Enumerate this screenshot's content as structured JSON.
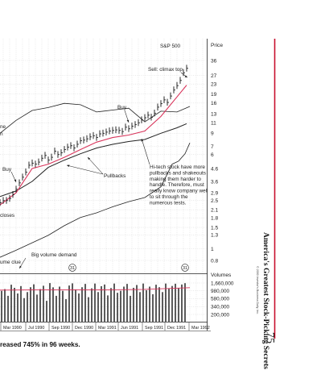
{
  "chart_data": {
    "type": "line",
    "title": "",
    "price_axis_title": "Price",
    "volume_axis_title": "Volumes",
    "reference_series_label": "S&P 500",
    "price_ticks": [
      36,
      27,
      23,
      19,
      16,
      13,
      11,
      9,
      7,
      6,
      4.6,
      3.6,
      2.9,
      2.5,
      2.1,
      1.8,
      1.5,
      1.3,
      1.0,
      0.8
    ],
    "price_scale": "log",
    "volume_ticks": [
      "1,660,000",
      "980,000",
      "580,000",
      "340,000",
      "200,000"
    ],
    "volume_tick_values": [
      1660000,
      980000,
      580000,
      340000,
      200000
    ],
    "x_labels": [
      "Mar 1990",
      "Jul 1990",
      "Sep 1990",
      "Dec 1990",
      "Mar 1991",
      "Jun 1991",
      "Sep 1991",
      "Dec 1991",
      "Mar 1992"
    ],
    "grid": true,
    "series": [
      {
        "kind": "price_bars",
        "x": [
          0,
          4,
          8,
          12,
          16,
          20,
          24,
          28,
          32,
          36,
          40,
          44,
          48,
          52,
          56,
          60,
          64,
          68,
          72,
          76,
          80,
          84,
          88,
          92,
          96,
          100,
          104,
          108,
          112,
          116,
          120,
          124,
          128,
          132,
          136,
          140,
          144,
          148,
          152,
          156,
          160,
          164,
          168,
          172,
          176,
          180,
          184,
          188,
          192,
          196,
          200,
          204,
          208,
          212,
          216,
          220,
          224,
          228,
          232
        ],
        "values": [
          2.4,
          2.5,
          2.5,
          2.6,
          2.8,
          3.1,
          3.5,
          3.9,
          4.3,
          4.9,
          5.1,
          5.0,
          5.2,
          5.6,
          5.9,
          5.4,
          5.7,
          6.4,
          6.0,
          6.2,
          6.6,
          6.9,
          7.1,
          6.8,
          7.3,
          7.8,
          7.9,
          8.1,
          8.4,
          8.6,
          8.3,
          8.9,
          9.0,
          9.2,
          9.4,
          9.5,
          9.6,
          9.5,
          9.3,
          10.1,
          9.8,
          10.3,
          10.6,
          11.0,
          11.6,
          12.1,
          12.7,
          12.2,
          13.2,
          14.8,
          15.8,
          17.0,
          16.2,
          18.3,
          20.5,
          22.3,
          24.6,
          28.5,
          31.0
        ]
      },
      {
        "kind": "moving_average_short",
        "x": [
          0,
          20,
          40,
          60,
          80,
          100,
          120,
          140,
          160,
          180,
          200,
          220,
          232
        ],
        "values": [
          2.3,
          2.9,
          4.6,
          5.0,
          5.7,
          6.6,
          7.6,
          8.3,
          8.7,
          9.4,
          12.4,
          18.0,
          22.5
        ]
      },
      {
        "kind": "moving_average_long",
        "x": [
          0,
          20,
          40,
          60,
          80,
          100,
          120,
          140,
          160,
          180,
          200,
          220,
          232
        ],
        "values": [
          2.7,
          3.0,
          3.6,
          4.7,
          5.4,
          6.1,
          6.8,
          7.3,
          7.7,
          8.0,
          9.0,
          10.0,
          10.8
        ]
      },
      {
        "kind": "relative_strength",
        "x": [
          0,
          20,
          40,
          60,
          80,
          100,
          120,
          140,
          160,
          180,
          200,
          214,
          222,
          230,
          236
        ],
        "values": [
          0.85,
          0.97,
          1.12,
          1.29,
          1.55,
          1.81,
          1.98,
          2.22,
          2.45,
          2.65,
          3.25,
          5.0,
          5.3,
          6.1,
          7.5
        ]
      },
      {
        "kind": "sp500",
        "x": [
          0,
          20,
          40,
          60,
          80,
          100,
          120,
          140,
          160,
          180,
          200,
          220,
          236
        ],
        "values": [
          9.0,
          11.5,
          13.9,
          14.7,
          15.9,
          15.5,
          13.5,
          14.0,
          14.5,
          11.2,
          13.7,
          13.5,
          15.0
        ]
      },
      {
        "kind": "volume",
        "x": [
          2,
          6,
          10,
          14,
          18,
          22,
          26,
          30,
          34,
          38,
          42,
          46,
          50,
          54,
          58,
          62,
          66,
          70,
          74,
          78,
          82,
          86,
          90,
          94,
          98,
          102,
          106,
          110,
          114,
          118,
          122,
          126,
          130,
          134,
          138,
          142,
          146,
          150,
          154,
          158,
          162,
          166,
          170,
          174,
          178,
          182,
          186,
          190,
          194,
          198,
          202,
          206,
          210,
          214,
          218,
          222,
          226,
          230
        ],
        "values": [
          980000,
          1100000,
          700000,
          1480000,
          1200000,
          820000,
          1350000,
          600000,
          900000,
          1250000,
          1520000,
          760000,
          1100000,
          1380000,
          500000,
          1650000,
          1240000,
          700000,
          1300000,
          980000,
          560000,
          1400000,
          1620000,
          1080000,
          820000,
          1250000,
          1560000,
          640000,
          1160000,
          1600000,
          900000,
          1340000,
          1500000,
          720000,
          1180000,
          1600000,
          860000,
          980000,
          1300000,
          1560000,
          700000,
          1200000,
          1450000,
          900000,
          1600000,
          1020000,
          1300000,
          780000,
          1480000,
          1250000,
          900000,
          1600000,
          1150000,
          1360000,
          1580000,
          1200000,
          1500000,
          1640000
        ]
      },
      {
        "kind": "volume_average",
        "x": [
          0,
          60,
          120,
          180,
          236
        ],
        "values": [
          1030000,
          1050000,
          1040000,
          1080000,
          1210000
        ]
      }
    ],
    "annotations": [
      {
        "text": "Sell: climax top"
      },
      {
        "text": "Buy"
      },
      {
        "text": "Buy"
      },
      {
        "text": "Pullbacks"
      },
      {
        "text": "Hi-tech stock have more pullbacks and shakeouts making them harder to handle. Therefore, must really know company well to sit through the numerous tests."
      },
      {
        "text": "ne"
      },
      {
        "text": "n"
      },
      {
        "text": "closes"
      },
      {
        "text": "ume clue"
      },
      {
        "text": "Big volume demand"
      }
    ],
    "volume_markers": [
      "31",
      "31"
    ]
  },
  "page": {
    "caption": "reased 745% in 96 weeks.",
    "side_title": "America's Greatest Stock-Picking Secrets",
    "page_number": "75",
    "copyright": "© 2000 Investor's Business Daily, Inc."
  },
  "colors": {
    "accent": "#c8102e",
    "ink": "#222222",
    "grid": "#b9b9b9",
    "moving_average_short": "#d9345b",
    "background": "#ffffff"
  }
}
